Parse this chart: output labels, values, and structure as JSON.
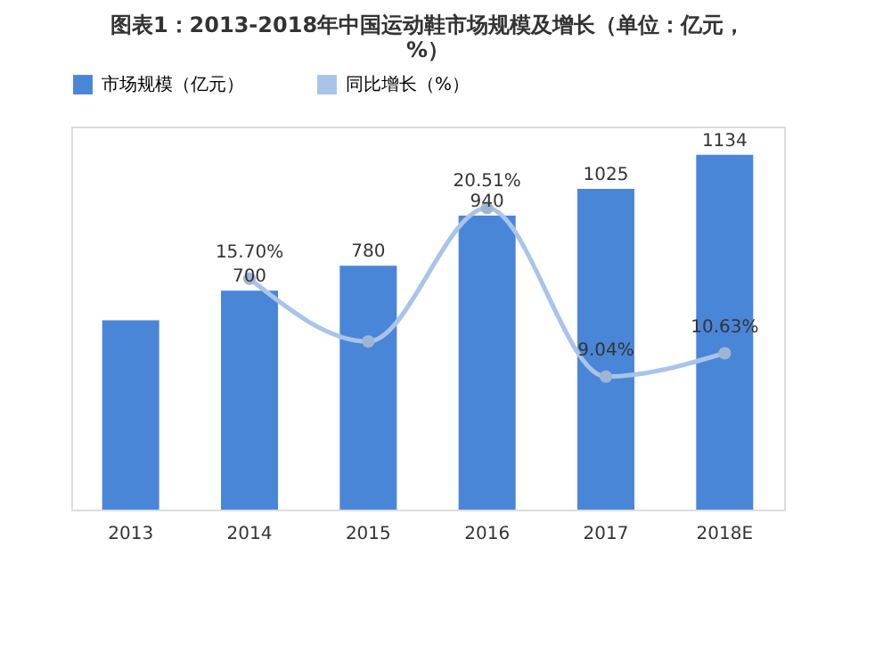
{
  "chart_data": {
    "type": "bar",
    "title": "图表1：2013-2018年中国运动鞋市场规模及增长（单位：亿元，%）",
    "categories": [
      "2013",
      "2014",
      "2015",
      "2016",
      "2017",
      "2018E"
    ],
    "legend": "top",
    "series": [
      {
        "name": "市场规模（亿元）",
        "color": "#4a86d8",
        "values": [
          605,
          700,
          780,
          940,
          1025,
          1134
        ],
        "value_labels": [
          null,
          "700",
          "780",
          "940",
          "1025",
          "1134"
        ]
      },
      {
        "name": "同比增长（%）",
        "type": "line",
        "axis": "y2",
        "color": "#a9c4e8",
        "marker": "circle",
        "values": [
          null,
          15.7,
          11.43,
          20.51,
          9.04,
          10.63
        ],
        "value_labels": [
          null,
          "15.70%",
          null,
          "20.51%",
          "9.04%",
          "10.63%"
        ]
      }
    ]
  }
}
